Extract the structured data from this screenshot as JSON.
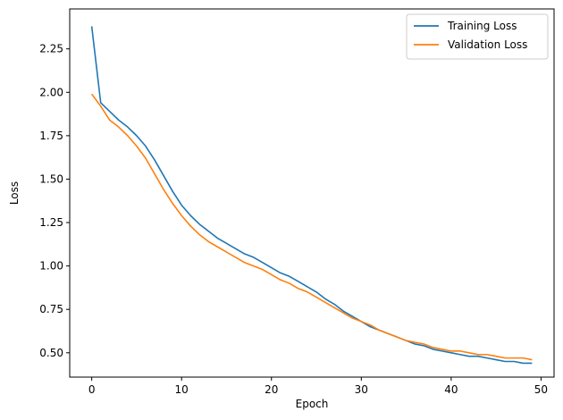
{
  "chart_data": {
    "type": "line",
    "title": "",
    "xlabel": "Epoch",
    "ylabel": "Loss",
    "xlim": [
      -2.45,
      51.45
    ],
    "ylim": [
      0.36,
      2.48
    ],
    "xticks": [
      0,
      10,
      20,
      30,
      40,
      50
    ],
    "xtick_labels": [
      "0",
      "10",
      "20",
      "30",
      "40",
      "50"
    ],
    "yticks": [
      0.5,
      0.75,
      1.0,
      1.25,
      1.5,
      1.75,
      2.0,
      2.25
    ],
    "ytick_labels": [
      "0.50",
      "0.75",
      "1.00",
      "1.25",
      "1.50",
      "1.75",
      "2.00",
      "2.25"
    ],
    "grid": false,
    "legend_position": "top-right",
    "x": [
      0,
      1,
      2,
      3,
      4,
      5,
      6,
      7,
      8,
      9,
      10,
      11,
      12,
      13,
      14,
      15,
      16,
      17,
      18,
      19,
      20,
      21,
      22,
      23,
      24,
      25,
      26,
      27,
      28,
      29,
      30,
      31,
      32,
      33,
      34,
      35,
      36,
      37,
      38,
      39,
      40,
      41,
      42,
      43,
      44,
      45,
      46,
      47,
      48,
      49
    ],
    "series": [
      {
        "name": "Training Loss",
        "color": "#1f77b4",
        "values": [
          2.38,
          1.94,
          1.89,
          1.84,
          1.8,
          1.75,
          1.69,
          1.61,
          1.52,
          1.43,
          1.35,
          1.29,
          1.24,
          1.2,
          1.16,
          1.13,
          1.1,
          1.07,
          1.05,
          1.02,
          0.99,
          0.96,
          0.94,
          0.91,
          0.88,
          0.85,
          0.81,
          0.78,
          0.74,
          0.71,
          0.68,
          0.65,
          0.63,
          0.61,
          0.59,
          0.57,
          0.55,
          0.54,
          0.52,
          0.51,
          0.5,
          0.49,
          0.48,
          0.48,
          0.47,
          0.46,
          0.45,
          0.45,
          0.44,
          0.44
        ]
      },
      {
        "name": "Validation Loss",
        "color": "#ff7f0e",
        "values": [
          1.99,
          1.92,
          1.84,
          1.8,
          1.75,
          1.69,
          1.62,
          1.53,
          1.44,
          1.36,
          1.29,
          1.23,
          1.18,
          1.14,
          1.11,
          1.08,
          1.05,
          1.02,
          1.0,
          0.98,
          0.95,
          0.92,
          0.9,
          0.87,
          0.85,
          0.82,
          0.79,
          0.76,
          0.73,
          0.7,
          0.68,
          0.66,
          0.63,
          0.61,
          0.59,
          0.57,
          0.56,
          0.55,
          0.53,
          0.52,
          0.51,
          0.51,
          0.5,
          0.49,
          0.49,
          0.48,
          0.47,
          0.47,
          0.47,
          0.46
        ]
      }
    ]
  }
}
